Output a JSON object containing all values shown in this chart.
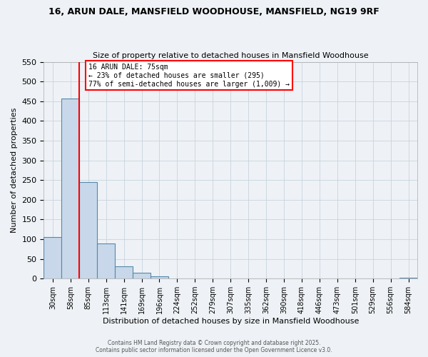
{
  "title": "16, ARUN DALE, MANSFIELD WOODHOUSE, MANSFIELD, NG19 9RF",
  "subtitle": "Size of property relative to detached houses in Mansfield Woodhouse",
  "xlabel": "Distribution of detached houses by size in Mansfield Woodhouse",
  "ylabel": "Number of detached properties",
  "bin_labels": [
    "30sqm",
    "58sqm",
    "85sqm",
    "113sqm",
    "141sqm",
    "169sqm",
    "196sqm",
    "224sqm",
    "252sqm",
    "279sqm",
    "307sqm",
    "335sqm",
    "362sqm",
    "390sqm",
    "418sqm",
    "446sqm",
    "473sqm",
    "501sqm",
    "529sqm",
    "556sqm",
    "584sqm"
  ],
  "bar_heights": [
    105,
    457,
    245,
    90,
    32,
    14,
    5,
    0,
    0,
    0,
    0,
    0,
    0,
    0,
    0,
    0,
    0,
    0,
    0,
    0,
    2
  ],
  "bar_color": "#c8d8ea",
  "bar_edgecolor": "#5588aa",
  "vline_color": "red",
  "vline_x": 1.5,
  "annotation_title": "16 ARUN DALE: 75sqm",
  "annotation_line1": "← 23% of detached houses are smaller (295)",
  "annotation_line2": "77% of semi-detached houses are larger (1,009) →",
  "annotation_box_color": "white",
  "annotation_box_edgecolor": "red",
  "ylim": [
    0,
    550
  ],
  "yticks": [
    0,
    50,
    100,
    150,
    200,
    250,
    300,
    350,
    400,
    450,
    500,
    550
  ],
  "footer1": "Contains HM Land Registry data © Crown copyright and database right 2025.",
  "footer2": "Contains public sector information licensed under the Open Government Licence v3.0.",
  "bg_color": "#eef2f6",
  "grid_color": "#c8d4de"
}
